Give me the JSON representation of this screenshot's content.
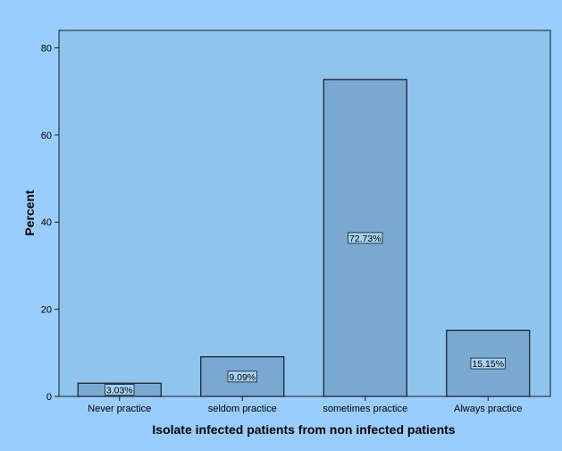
{
  "colors": {
    "background": "#99CCFF",
    "plot_area": "#8FC4EC",
    "bar_fill": "#79A9D0",
    "outline": "#1A1A1A",
    "label_box": "#A8D2F2"
  },
  "chart_data": {
    "type": "bar",
    "categories": [
      "Never practice",
      "seldom practice",
      "sometimes practice",
      "Always practice"
    ],
    "values": [
      3.03,
      9.09,
      72.73,
      15.15
    ],
    "data_labels": [
      "3.03%",
      "9.09%",
      "72.73%",
      "15.15%"
    ],
    "xlabel": "Isolate infected patients from non infected patients",
    "ylabel": "Percent",
    "ylim": [
      0,
      84
    ],
    "yticks": [
      0,
      20,
      40,
      60,
      80
    ],
    "ytick_labels": [
      "0",
      "20",
      "40",
      "60",
      "80"
    ],
    "grid": false,
    "legend": "none"
  }
}
